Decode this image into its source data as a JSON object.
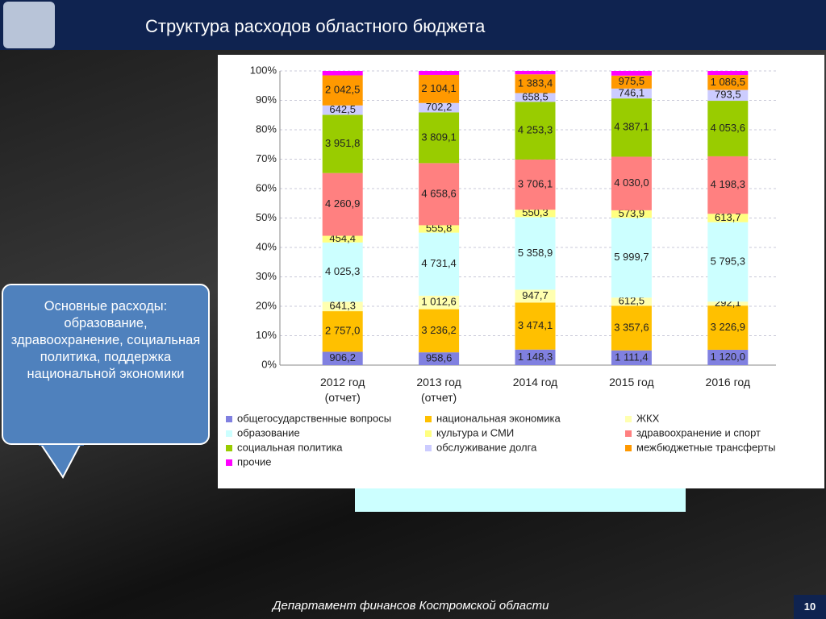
{
  "header": {
    "title": "Структура расходов областного бюджета"
  },
  "callout": {
    "text": "Основные расходы: образование, здравоохранение, социальная политика, поддержка национальной экономики"
  },
  "footer": {
    "text": "Департамент финансов  Костромской области",
    "page": "10"
  },
  "chart_data": {
    "type": "bar",
    "stacking": "percent",
    "grid": true,
    "categories": [
      "2012 год (отчет)",
      "2013 год (отчет)",
      "2014 год",
      "2015 год",
      "2016 год"
    ],
    "ylim": [
      0,
      100
    ],
    "yticks": [
      {
        "value": 0,
        "label": "0%"
      },
      {
        "value": 10,
        "label": "10%"
      },
      {
        "value": 20,
        "label": "20%"
      },
      {
        "value": 30,
        "label": "30%"
      },
      {
        "value": 40,
        "label": "40%"
      },
      {
        "value": 50,
        "label": "50%"
      },
      {
        "value": 60,
        "label": "60%"
      },
      {
        "value": 70,
        "label": "70%"
      },
      {
        "value": 80,
        "label": "80%"
      },
      {
        "value": 90,
        "label": "90%"
      },
      {
        "value": 100,
        "label": "100%"
      }
    ],
    "series": [
      {
        "name": "общегосударственные вопросы",
        "color": "#8080e0",
        "values": [
          906.2,
          958.6,
          1148.3,
          1111.4,
          1120.0
        ],
        "value_labels": [
          "906,2",
          "958,6",
          "1 148,3",
          "1 111,4",
          "1 120,0"
        ]
      },
      {
        "name": "национальная экономика",
        "color": "#ffc000",
        "values": [
          2757.0,
          3236.2,
          3474.1,
          3357.6,
          3226.9
        ],
        "value_labels": [
          "2 757,0",
          "3 236,2",
          "3 474,1",
          "3 357,6",
          "3 226,9"
        ]
      },
      {
        "name": "ЖКХ",
        "color": "#ffffb0",
        "values": [
          641.3,
          1012.6,
          947.7,
          612.5,
          292.1
        ],
        "value_labels": [
          "641,3",
          "1 012,6",
          "947,7",
          "612,5",
          "292,1"
        ]
      },
      {
        "name": "образование",
        "color": "#ccffff",
        "values": [
          4025.3,
          4731.4,
          5358.9,
          5999.7,
          5795.3
        ],
        "value_labels": [
          "4 025,3",
          "4 731,4",
          "5 358,9",
          "5 999,7",
          "5 795,3"
        ]
      },
      {
        "name": "культура и СМИ",
        "color": "#ffff80",
        "values": [
          454.4,
          555.8,
          550.3,
          573.9,
          613.7
        ],
        "value_labels": [
          "454,4",
          "555,8",
          "550,3",
          "573,9",
          "613,7"
        ]
      },
      {
        "name": "здравоохранение и спорт",
        "color": "#ff8080",
        "values": [
          4260.9,
          4658.6,
          3706.1,
          4030.0,
          4198.3
        ],
        "value_labels": [
          "4 260,9",
          "4 658,6",
          "3 706,1",
          "4 030,0",
          "4 198,3"
        ]
      },
      {
        "name": "социальная политика",
        "color": "#99cc00",
        "values": [
          3951.8,
          3809.1,
          4253.3,
          4387.1,
          4053.6
        ],
        "value_labels": [
          "3 951,8",
          "3 809,1",
          "4 253,3",
          "4 387,1",
          "4 053,6"
        ]
      },
      {
        "name": "обслуживание долга",
        "color": "#ccccff",
        "values": [
          642.5,
          702.2,
          658.5,
          746.1,
          793.5
        ],
        "value_labels": [
          "642,5",
          "702,2",
          "658,5",
          "746,1",
          "793,5"
        ]
      },
      {
        "name": "межбюджетные трансферты",
        "color": "#ff9900",
        "values": [
          2042.5,
          2104.1,
          1383.4,
          975.5,
          1086.5
        ],
        "value_labels": [
          "2 042,5",
          "2 104,1",
          "1 383,4",
          "975,5",
          "1 086,5"
        ]
      },
      {
        "name": "прочие",
        "color": "#ff00ff",
        "values": [
          300,
          300,
          250,
          350,
          300
        ],
        "value_labels": [
          null,
          null,
          null,
          null,
          null
        ]
      }
    ]
  }
}
